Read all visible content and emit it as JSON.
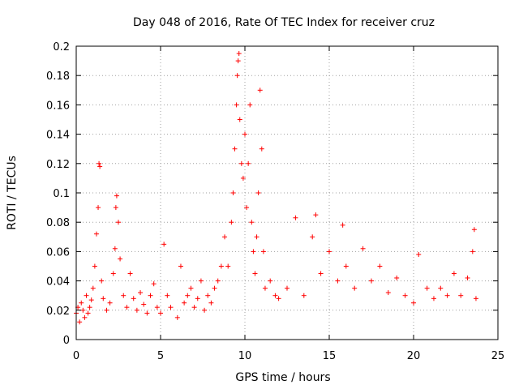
{
  "chart_data": {
    "type": "scatter",
    "title": "Day 048 of 2016, Rate Of TEC Index for receiver cruz",
    "xlabel": "GPS time / hours",
    "ylabel": "ROTI / TECUs",
    "xlim": [
      0,
      25
    ],
    "ylim": [
      0,
      0.2
    ],
    "x_ticks": [
      0,
      5,
      10,
      15,
      20,
      25
    ],
    "y_ticks": [
      0,
      0.02,
      0.04,
      0.06,
      0.08,
      0.1,
      0.12,
      0.14,
      0.16,
      0.18,
      0.2
    ],
    "x_tick_labels": [
      "0",
      "5",
      "10",
      "15",
      "20",
      "25"
    ],
    "y_tick_labels": [
      "0",
      "0.02",
      "0.04",
      "0.06",
      "0.08",
      "0.1",
      "0.12",
      "0.14",
      "0.16",
      "0.18",
      "0.2"
    ],
    "grid": true,
    "marker": "+",
    "marker_color": "#ff0000",
    "points": [
      [
        0.0,
        0.018
      ],
      [
        0.1,
        0.022
      ],
      [
        0.2,
        0.012
      ],
      [
        0.3,
        0.025
      ],
      [
        0.4,
        0.02
      ],
      [
        0.5,
        0.015
      ],
      [
        0.6,
        0.03
      ],
      [
        0.7,
        0.018
      ],
      [
        0.8,
        0.022
      ],
      [
        0.9,
        0.027
      ],
      [
        1.0,
        0.035
      ],
      [
        1.1,
        0.05
      ],
      [
        1.2,
        0.072
      ],
      [
        1.3,
        0.09
      ],
      [
        1.35,
        0.12
      ],
      [
        1.4,
        0.118
      ],
      [
        1.5,
        0.04
      ],
      [
        1.6,
        0.028
      ],
      [
        1.8,
        0.02
      ],
      [
        2.0,
        0.025
      ],
      [
        2.2,
        0.045
      ],
      [
        2.3,
        0.062
      ],
      [
        2.35,
        0.09
      ],
      [
        2.4,
        0.098
      ],
      [
        2.5,
        0.08
      ],
      [
        2.6,
        0.055
      ],
      [
        2.8,
        0.03
      ],
      [
        3.0,
        0.022
      ],
      [
        3.2,
        0.045
      ],
      [
        3.4,
        0.028
      ],
      [
        3.6,
        0.02
      ],
      [
        3.8,
        0.032
      ],
      [
        4.0,
        0.024
      ],
      [
        4.2,
        0.018
      ],
      [
        4.4,
        0.03
      ],
      [
        4.6,
        0.038
      ],
      [
        4.8,
        0.022
      ],
      [
        5.0,
        0.018
      ],
      [
        5.2,
        0.065
      ],
      [
        5.4,
        0.03
      ],
      [
        5.6,
        0.022
      ],
      [
        6.0,
        0.015
      ],
      [
        6.2,
        0.05
      ],
      [
        6.4,
        0.025
      ],
      [
        6.6,
        0.03
      ],
      [
        6.8,
        0.035
      ],
      [
        7.0,
        0.022
      ],
      [
        7.2,
        0.028
      ],
      [
        7.4,
        0.04
      ],
      [
        7.6,
        0.02
      ],
      [
        7.8,
        0.03
      ],
      [
        8.0,
        0.025
      ],
      [
        8.2,
        0.035
      ],
      [
        8.4,
        0.04
      ],
      [
        8.6,
        0.05
      ],
      [
        8.8,
        0.07
      ],
      [
        9.0,
        0.05
      ],
      [
        9.2,
        0.08
      ],
      [
        9.3,
        0.1
      ],
      [
        9.4,
        0.13
      ],
      [
        9.5,
        0.16
      ],
      [
        9.55,
        0.18
      ],
      [
        9.6,
        0.19
      ],
      [
        9.65,
        0.195
      ],
      [
        9.7,
        0.15
      ],
      [
        9.8,
        0.12
      ],
      [
        9.9,
        0.11
      ],
      [
        10.0,
        0.14
      ],
      [
        10.1,
        0.09
      ],
      [
        10.2,
        0.12
      ],
      [
        10.3,
        0.16
      ],
      [
        10.4,
        0.08
      ],
      [
        10.5,
        0.06
      ],
      [
        10.6,
        0.045
      ],
      [
        10.7,
        0.07
      ],
      [
        10.8,
        0.1
      ],
      [
        10.9,
        0.17
      ],
      [
        11.0,
        0.13
      ],
      [
        11.1,
        0.06
      ],
      [
        11.2,
        0.035
      ],
      [
        11.5,
        0.04
      ],
      [
        11.8,
        0.03
      ],
      [
        12.0,
        0.028
      ],
      [
        12.5,
        0.035
      ],
      [
        13.0,
        0.083
      ],
      [
        13.5,
        0.03
      ],
      [
        14.0,
        0.07
      ],
      [
        14.2,
        0.085
      ],
      [
        14.5,
        0.045
      ],
      [
        15.0,
        0.06
      ],
      [
        15.5,
        0.04
      ],
      [
        15.8,
        0.078
      ],
      [
        16.0,
        0.05
      ],
      [
        16.5,
        0.035
      ],
      [
        17.0,
        0.062
      ],
      [
        17.5,
        0.04
      ],
      [
        18.0,
        0.05
      ],
      [
        18.5,
        0.032
      ],
      [
        19.0,
        0.042
      ],
      [
        19.5,
        0.03
      ],
      [
        20.0,
        0.025
      ],
      [
        20.3,
        0.058
      ],
      [
        20.8,
        0.035
      ],
      [
        21.2,
        0.028
      ],
      [
        21.6,
        0.035
      ],
      [
        22.0,
        0.03
      ],
      [
        22.4,
        0.045
      ],
      [
        22.8,
        0.03
      ],
      [
        23.2,
        0.042
      ],
      [
        23.5,
        0.06
      ],
      [
        23.6,
        0.075
      ],
      [
        23.7,
        0.028
      ]
    ]
  }
}
